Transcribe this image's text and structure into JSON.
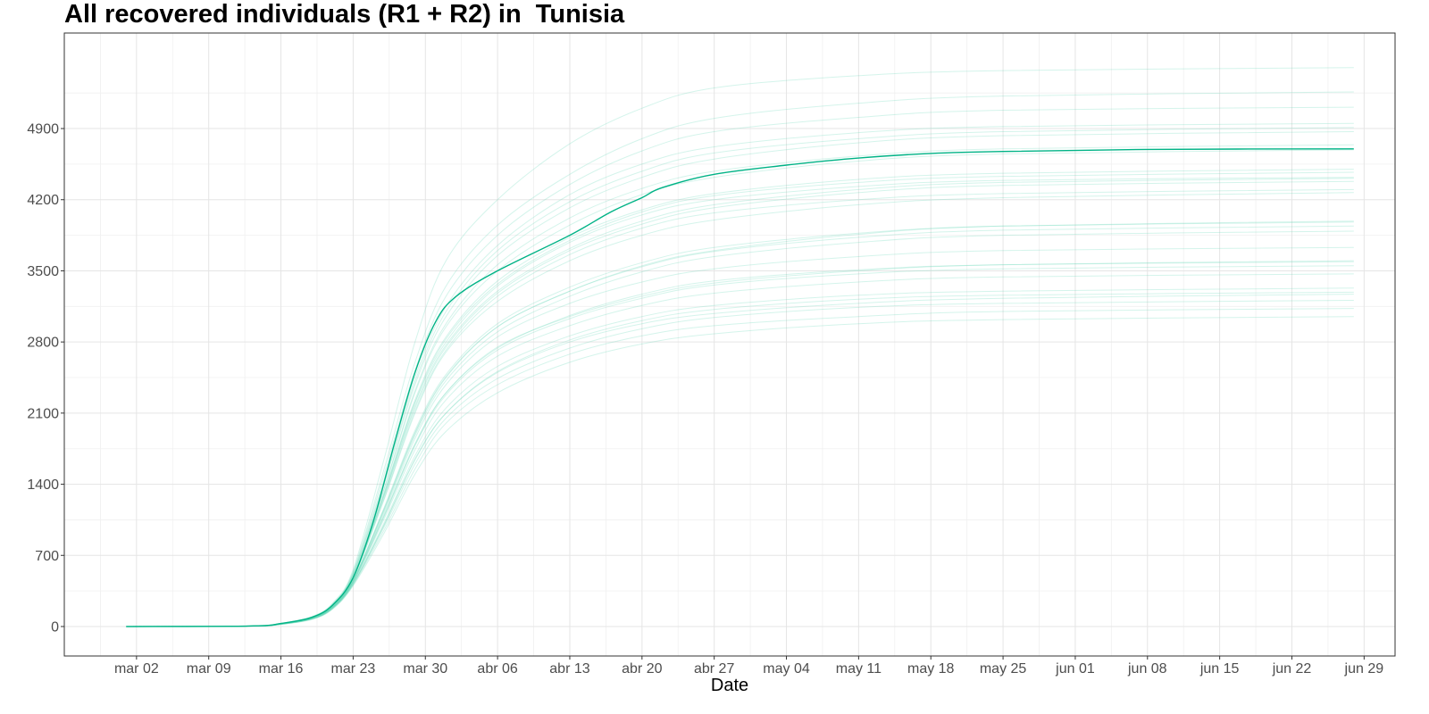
{
  "chart_data": {
    "type": "line",
    "title": "All recovered individuals (R1 + R2) in  Tunisia",
    "xlabel": "Date",
    "ylabel": "",
    "x_range": [
      "2020-02-24",
      "2020-07-02"
    ],
    "ylim": [
      -290,
      5840
    ],
    "y_ticks": [
      0,
      700,
      1400,
      2100,
      2800,
      3500,
      4200,
      4900
    ],
    "x_ticks": [
      {
        "date": "2020-03-02",
        "label": "mar 02"
      },
      {
        "date": "2020-03-09",
        "label": "mar 09"
      },
      {
        "date": "2020-03-16",
        "label": "mar 16"
      },
      {
        "date": "2020-03-23",
        "label": "mar 23"
      },
      {
        "date": "2020-03-30",
        "label": "mar 30"
      },
      {
        "date": "2020-04-06",
        "label": "abr 06"
      },
      {
        "date": "2020-04-13",
        "label": "abr 13"
      },
      {
        "date": "2020-04-20",
        "label": "abr 20"
      },
      {
        "date": "2020-04-27",
        "label": "abr 27"
      },
      {
        "date": "2020-05-04",
        "label": "may 04"
      },
      {
        "date": "2020-05-11",
        "label": "may 11"
      },
      {
        "date": "2020-05-18",
        "label": "may 18"
      },
      {
        "date": "2020-05-25",
        "label": "may 25"
      },
      {
        "date": "2020-06-01",
        "label": "jun 01"
      },
      {
        "date": "2020-06-08",
        "label": "jun 08"
      },
      {
        "date": "2020-06-15",
        "label": "jun 15"
      },
      {
        "date": "2020-06-22",
        "label": "jun 22"
      },
      {
        "date": "2020-06-29",
        "label": "jun 29"
      }
    ],
    "grid": true,
    "colors": {
      "main": "#00b386",
      "ensemble": "#66d9b8"
    },
    "main_series": {
      "x": [
        "2020-03-01",
        "2020-03-13",
        "2020-03-16",
        "2020-03-19",
        "2020-03-21",
        "2020-03-23",
        "2020-03-25",
        "2020-03-27",
        "2020-03-29",
        "2020-03-31",
        "2020-04-02",
        "2020-04-06",
        "2020-04-13",
        "2020-04-17",
        "2020-04-20",
        "2020-04-22",
        "2020-04-27",
        "2020-05-04",
        "2020-05-11",
        "2020-05-18",
        "2020-05-25",
        "2020-06-08",
        "2020-06-28"
      ],
      "y": [
        0,
        5,
        30,
        90,
        210,
        480,
        1050,
        1800,
        2500,
        3000,
        3250,
        3500,
        3850,
        4080,
        4220,
        4320,
        4450,
        4540,
        4610,
        4655,
        4675,
        4695,
        4700
      ]
    },
    "ensemble": {
      "x": [
        "2020-03-01",
        "2020-03-13",
        "2020-03-16",
        "2020-03-19",
        "2020-03-21",
        "2020-03-23",
        "2020-03-26",
        "2020-03-29",
        "2020-04-01",
        "2020-04-06",
        "2020-04-13",
        "2020-04-20",
        "2020-04-27",
        "2020-05-11",
        "2020-05-25",
        "2020-06-28"
      ],
      "series": [
        {
          "y": [
            0,
            4,
            25,
            80,
            190,
            450,
            1150,
            1900,
            2450,
            2950,
            3300,
            3550,
            3700,
            3860,
            3940,
            3990
          ]
        },
        {
          "y": [
            0,
            4,
            24,
            78,
            185,
            440,
            1100,
            1800,
            2300,
            2750,
            3050,
            3250,
            3380,
            3500,
            3560,
            3600
          ]
        },
        {
          "y": [
            0,
            4,
            26,
            82,
            195,
            470,
            1250,
            2100,
            2700,
            3200,
            3600,
            3850,
            4000,
            4150,
            4220,
            4270
          ]
        },
        {
          "y": [
            0,
            4,
            23,
            75,
            180,
            420,
            1000,
            1650,
            2100,
            2500,
            2800,
            2980,
            3080,
            3180,
            3230,
            3270
          ]
        },
        {
          "y": [
            0,
            5,
            28,
            88,
            205,
            500,
            1350,
            2300,
            2950,
            3500,
            3950,
            4250,
            4420,
            4580,
            4650,
            4690
          ]
        },
        {
          "y": [
            0,
            4,
            22,
            72,
            175,
            410,
            950,
            1550,
            2000,
            2380,
            2680,
            2860,
            2960,
            3050,
            3100,
            3130
          ]
        },
        {
          "y": [
            0,
            5,
            30,
            92,
            215,
            520,
            1450,
            2450,
            3150,
            3750,
            4250,
            4550,
            4720,
            4860,
            4920,
            4950
          ]
        },
        {
          "y": [
            0,
            4,
            25,
            80,
            188,
            445,
            1120,
            1850,
            2380,
            2850,
            3180,
            3390,
            3520,
            3640,
            3700,
            3730
          ]
        },
        {
          "y": [
            0,
            4,
            26,
            83,
            197,
            475,
            1280,
            2150,
            2750,
            3280,
            3700,
            3960,
            4120,
            4270,
            4340,
            4380
          ]
        },
        {
          "y": [
            0,
            3,
            21,
            70,
            170,
            400,
            920,
            1500,
            1920,
            2300,
            2600,
            2780,
            2880,
            2980,
            3020,
            3050
          ]
        },
        {
          "y": [
            0,
            5,
            31,
            95,
            220,
            540,
            1550,
            2600,
            3350,
            3950,
            4450,
            4800,
            5000,
            5150,
            5220,
            5260
          ]
        },
        {
          "y": [
            0,
            4,
            24,
            79,
            186,
            438,
            1080,
            1780,
            2280,
            2720,
            3030,
            3230,
            3360,
            3470,
            3520,
            3550
          ]
        },
        {
          "y": [
            0,
            4,
            27,
            85,
            200,
            480,
            1300,
            2200,
            2800,
            3350,
            3780,
            4050,
            4200,
            4330,
            4390,
            4420
          ]
        },
        {
          "y": [
            0,
            4,
            23,
            76,
            182,
            425,
            1020,
            1680,
            2150,
            2560,
            2860,
            3050,
            3160,
            3260,
            3300,
            3330
          ]
        },
        {
          "y": [
            0,
            5,
            32,
            98,
            230,
            560,
            1650,
            2800,
            3600,
            4200,
            4750,
            5100,
            5300,
            5420,
            5470,
            5500
          ]
        },
        {
          "y": [
            0,
            4,
            25,
            81,
            192,
            455,
            1170,
            1930,
            2480,
            2980,
            3340,
            3580,
            3730,
            3870,
            3940,
            3980
          ]
        },
        {
          "y": [
            0,
            4,
            26,
            84,
            198,
            478,
            1290,
            2170,
            2770,
            3300,
            3720,
            3990,
            4150,
            4300,
            4370,
            4410
          ]
        },
        {
          "y": [
            0,
            4,
            24,
            77,
            184,
            432,
            1060,
            1740,
            2230,
            2660,
            2960,
            3160,
            3280,
            3390,
            3440,
            3470
          ]
        },
        {
          "y": [
            0,
            5,
            29,
            90,
            212,
            510,
            1400,
            2380,
            3050,
            3650,
            4120,
            4420,
            4600,
            4760,
            4830,
            4870
          ]
        },
        {
          "y": [
            0,
            4,
            25,
            80,
            190,
            448,
            1140,
            1880,
            2420,
            2900,
            3250,
            3490,
            3640,
            3780,
            3850,
            3890
          ]
        },
        {
          "y": [
            0,
            4,
            27,
            86,
            202,
            485,
            1320,
            2230,
            2850,
            3400,
            3830,
            4100,
            4260,
            4400,
            4460,
            4500
          ]
        },
        {
          "y": [
            0,
            4,
            22,
            73,
            177,
            415,
            980,
            1600,
            2050,
            2440,
            2740,
            2930,
            3040,
            3140,
            3180,
            3210
          ]
        },
        {
          "y": [
            0,
            5,
            30,
            93,
            218,
            530,
            1500,
            2520,
            3250,
            3850,
            4350,
            4680,
            4870,
            5010,
            5080,
            5110
          ]
        },
        {
          "y": [
            0,
            4,
            26,
            83,
            196,
            470,
            1260,
            2120,
            2720,
            3250,
            3660,
            3920,
            4070,
            4200,
            4260,
            4300
          ]
        },
        {
          "y": [
            0,
            4,
            24,
            78,
            186,
            442,
            1090,
            1790,
            2300,
            2740,
            3060,
            3270,
            3400,
            3510,
            3560,
            3590
          ]
        },
        {
          "y": [
            0,
            5,
            28,
            87,
            207,
            495,
            1360,
            2320,
            2980,
            3560,
            4020,
            4310,
            4480,
            4630,
            4700,
            4740
          ]
        },
        {
          "y": [
            0,
            4,
            25,
            81,
            191,
            452,
            1160,
            1910,
            2460,
            2950,
            3300,
            3540,
            3690,
            3830,
            3900,
            3940
          ]
        },
        {
          "y": [
            0,
            4,
            27,
            85,
            201,
            482,
            1310,
            2210,
            2830,
            3370,
            3800,
            4080,
            4240,
            4370,
            4430,
            4470
          ]
        },
        {
          "y": [
            0,
            4,
            23,
            75,
            179,
            420,
            1000,
            1640,
            2100,
            2510,
            2820,
            3010,
            3120,
            3220,
            3260,
            3290
          ]
        },
        {
          "y": [
            0,
            5,
            29,
            91,
            214,
            515,
            1420,
            2410,
            3100,
            3700,
            4180,
            4480,
            4660,
            4800,
            4870,
            4910
          ]
        }
      ]
    }
  }
}
